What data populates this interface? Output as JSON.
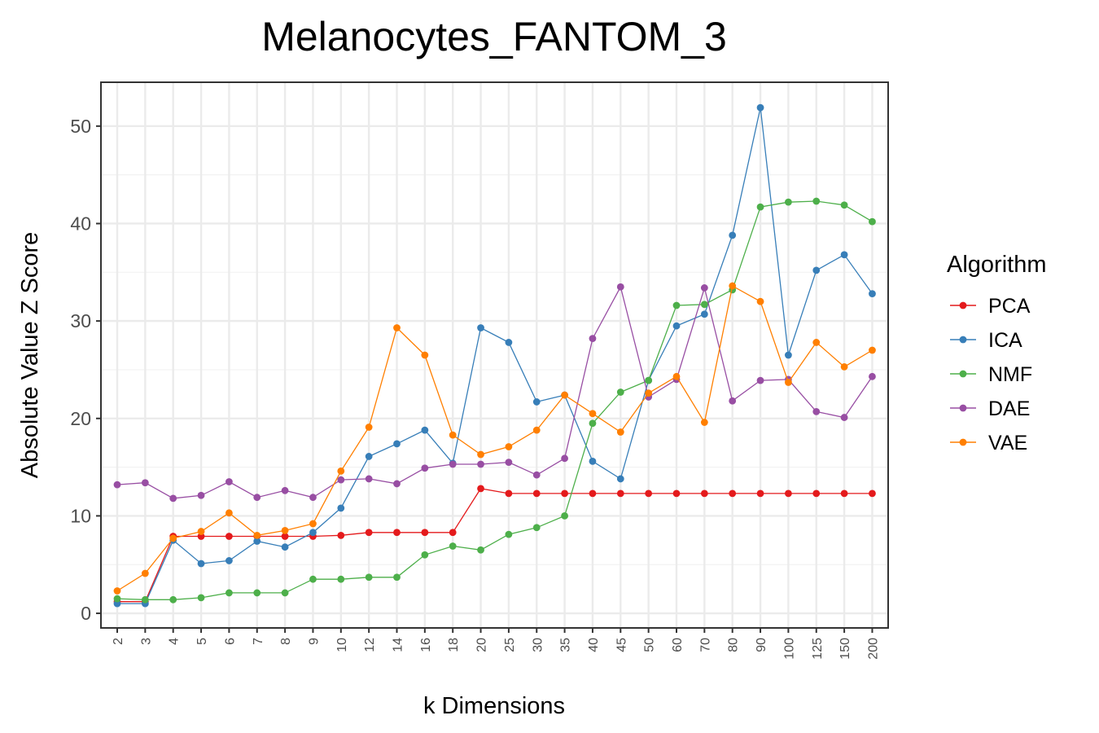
{
  "chart_data": {
    "type": "line",
    "title": "Melanocytes_FANTOM_3",
    "xlabel": "k Dimensions",
    "ylabel": "Absolute Value Z Score",
    "categories": [
      "2",
      "3",
      "4",
      "5",
      "6",
      "7",
      "8",
      "9",
      "10",
      "12",
      "14",
      "16",
      "18",
      "20",
      "25",
      "30",
      "35",
      "40",
      "45",
      "50",
      "60",
      "70",
      "80",
      "90",
      "100",
      "125",
      "150",
      "200"
    ],
    "ylim": [
      -1.5,
      54.5
    ],
    "yticks": [
      "0",
      "10",
      "20",
      "30",
      "40",
      "50"
    ],
    "grid": true,
    "legend_position": "right",
    "legend_title": "Algorithm",
    "series": [
      {
        "name": "PCA",
        "color": "#e41a1c",
        "values": [
          1.2,
          1.2,
          7.9,
          7.9,
          7.9,
          7.9,
          7.9,
          7.9,
          8.0,
          8.3,
          8.3,
          8.3,
          8.3,
          12.8,
          12.3,
          12.3,
          12.3,
          12.3,
          12.3,
          12.3,
          12.3,
          12.3,
          12.3,
          12.3,
          12.3,
          12.3,
          12.3,
          12.3
        ]
      },
      {
        "name": "ICA",
        "color": "#377eb8",
        "values": [
          1.0,
          1.0,
          7.5,
          5.1,
          5.4,
          7.4,
          6.8,
          8.3,
          10.8,
          16.1,
          17.4,
          18.8,
          15.4,
          29.3,
          27.8,
          21.7,
          22.4,
          15.6,
          13.8,
          23.9,
          29.5,
          30.7,
          38.8,
          51.9,
          26.5,
          35.2,
          36.8,
          32.8
        ]
      },
      {
        "name": "NMF",
        "color": "#4daf4a",
        "values": [
          1.5,
          1.4,
          1.4,
          1.6,
          2.1,
          2.1,
          2.1,
          3.5,
          3.5,
          3.7,
          3.7,
          6.0,
          6.9,
          6.5,
          8.1,
          8.8,
          10.0,
          19.5,
          22.7,
          23.9,
          31.6,
          31.7,
          33.2,
          41.7,
          42.2,
          42.3,
          41.9,
          40.2
        ]
      },
      {
        "name": "DAE",
        "color": "#984ea3",
        "values": [
          13.2,
          13.4,
          11.8,
          12.1,
          13.5,
          11.9,
          12.6,
          11.9,
          13.7,
          13.8,
          13.3,
          14.9,
          15.3,
          15.3,
          15.5,
          14.2,
          15.9,
          28.2,
          33.5,
          22.2,
          24.0,
          33.4,
          21.8,
          23.9,
          24.0,
          20.7,
          20.1,
          24.3
        ]
      },
      {
        "name": "VAE",
        "color": "#ff7f00",
        "values": [
          2.3,
          4.1,
          7.7,
          8.4,
          10.3,
          8.0,
          8.5,
          9.2,
          14.6,
          19.1,
          29.3,
          26.5,
          18.3,
          16.3,
          17.1,
          18.8,
          22.4,
          20.5,
          18.6,
          22.6,
          24.3,
          19.6,
          33.6,
          32.0,
          23.7,
          27.8,
          25.3,
          27.0
        ]
      }
    ]
  }
}
